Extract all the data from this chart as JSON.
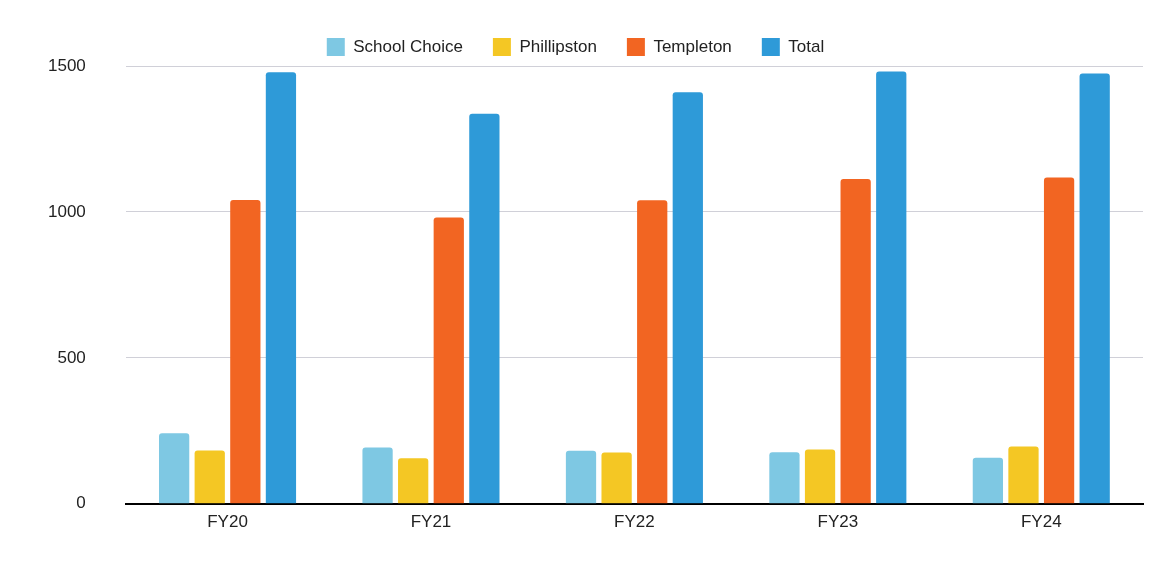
{
  "chart_data": {
    "type": "bar",
    "categories": [
      "FY20",
      "FY21",
      "FY22",
      "FY23",
      "FY24"
    ],
    "series": [
      {
        "name": "School Choice",
        "color": "#7ec8e3",
        "values": [
          242,
          193,
          182,
          177,
          158
        ]
      },
      {
        "name": "Phillipston",
        "color": "#f4c724",
        "values": [
          183,
          156,
          176,
          186,
          196
        ]
      },
      {
        "name": "Templeton",
        "color": "#f26522",
        "values": [
          1041,
          981,
          1040,
          1113,
          1118
        ]
      },
      {
        "name": "Total",
        "color": "#2e9ad8",
        "values": [
          1479,
          1336,
          1410,
          1481,
          1474
        ]
      }
    ],
    "ylim": [
      0,
      1500
    ],
    "yticks": [
      0,
      500,
      1000,
      1500
    ],
    "grid": "y",
    "legend": "top"
  }
}
